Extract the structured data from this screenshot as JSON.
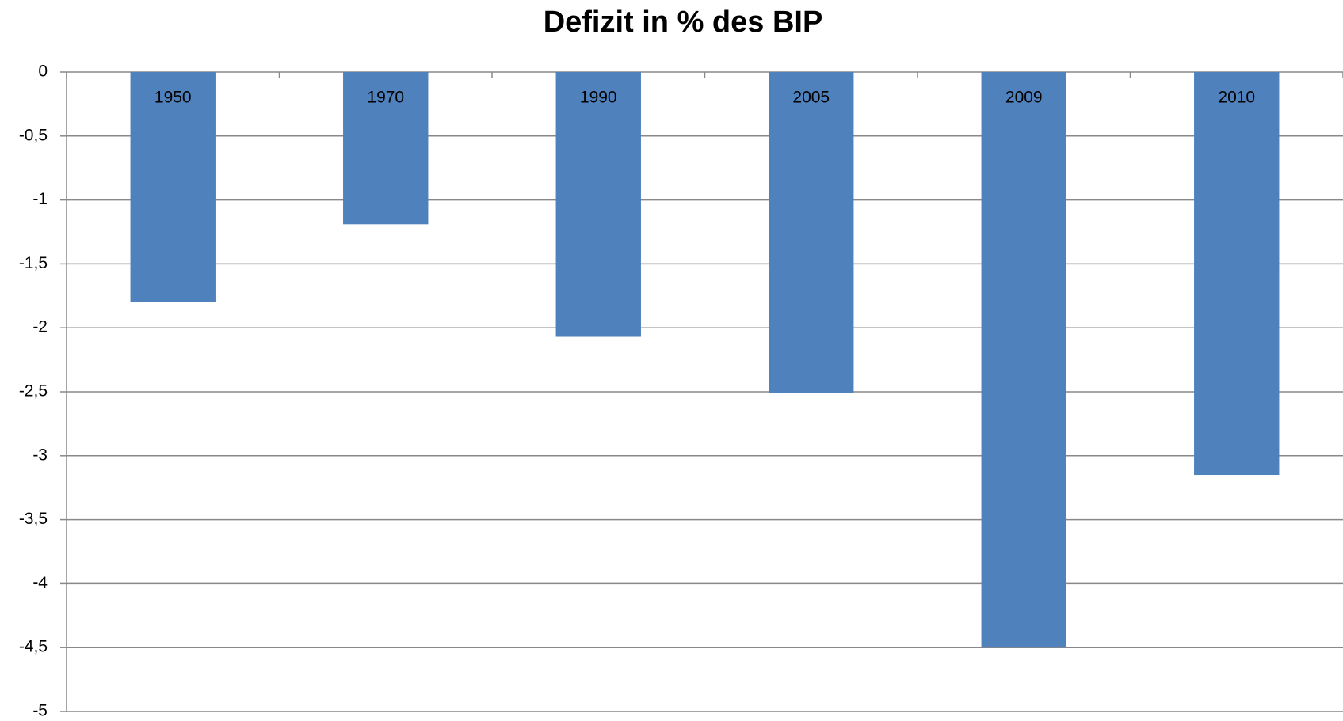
{
  "chart_data": {
    "type": "bar",
    "title": "Defizit in % des BIP",
    "categories": [
      "1950",
      "1970",
      "1990",
      "2005",
      "2009",
      "2010"
    ],
    "values": [
      -1.8,
      -1.19,
      -2.07,
      -2.51,
      -4.5,
      -3.15
    ],
    "color": "#4f81bd",
    "ylim": [
      -5,
      0
    ],
    "yticks": [
      0,
      {
        "value": -0.5,
        "label": "-0,5"
      },
      -1,
      {
        "value": -1.5,
        "label": "-1,5"
      },
      -2,
      {
        "value": -2.5,
        "label": "-2,5"
      },
      -3,
      {
        "value": -3.5,
        "label": "-3,5"
      },
      -4,
      {
        "value": -4.5,
        "label": "-4,5"
      },
      -5
    ],
    "grid": true
  }
}
